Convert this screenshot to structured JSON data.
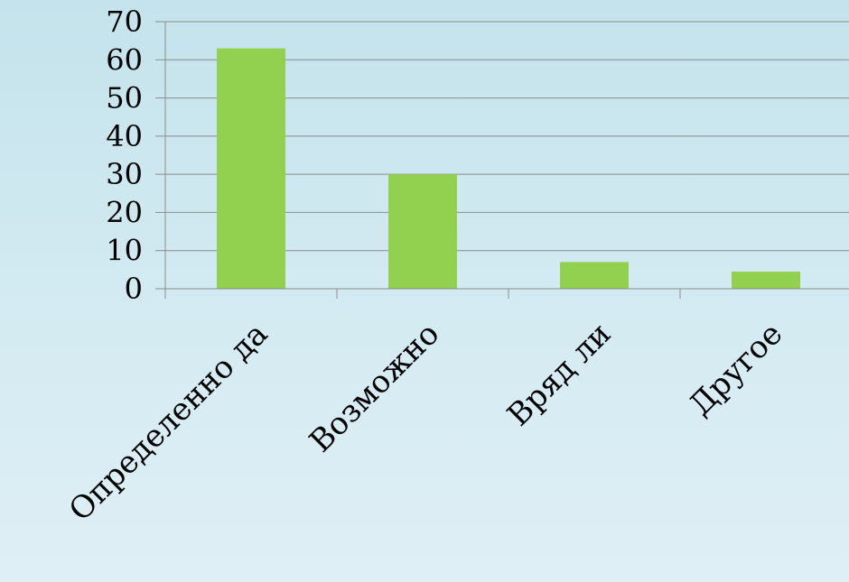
{
  "chart_data": {
    "type": "bar",
    "title": "",
    "xlabel": "",
    "ylabel": "",
    "categories": [
      "Определенно да",
      "Возможно",
      "Вряд ли",
      "Другое"
    ],
    "values": [
      63,
      30,
      7,
      4.5
    ],
    "ylim": [
      0,
      70
    ],
    "yticks": [
      0,
      10,
      20,
      30,
      40,
      50,
      60,
      70
    ],
    "grid": true,
    "legend": "none",
    "colors": {
      "bar": "#92d050",
      "grid": "#8c8c8c",
      "axis": "#8c8c8c"
    }
  }
}
